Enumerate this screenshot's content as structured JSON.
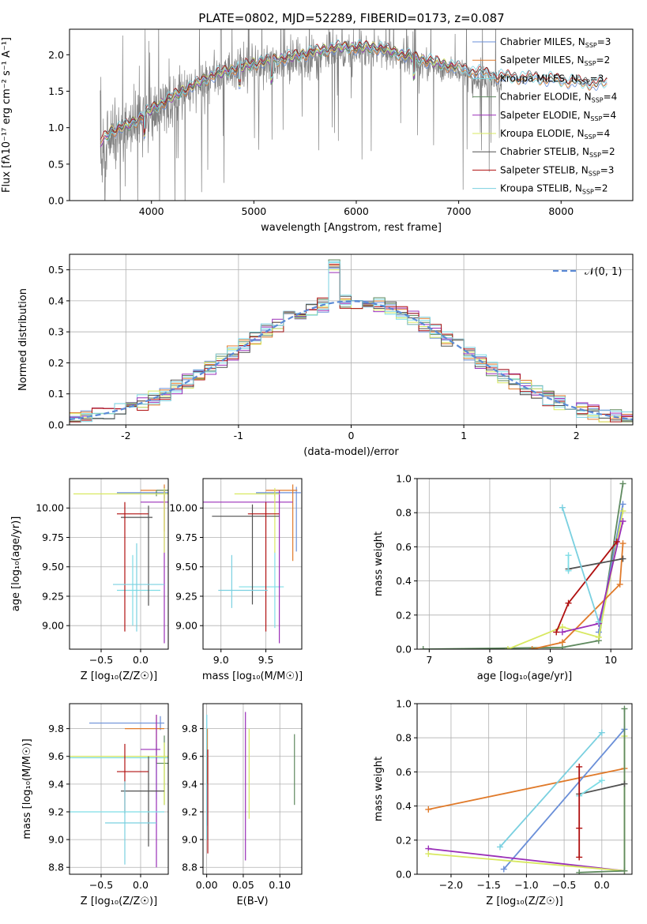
{
  "figure": {
    "title": "PLATE=0802, MJD=52289, FIBERID=0173, z=0.087"
  },
  "series_colors": {
    "Chabrier MILES": "#6a8fd8",
    "Salpeter MILES": "#e07a2a",
    "Kroupa MILES": "#7fdde6",
    "Chabrier ELODIE": "#5f8a5f",
    "Salpeter ELODIE": "#9a2fb8",
    "Kroupa ELODIE": "#d8e860",
    "Chabrier STELIB": "#505050",
    "Salpeter STELIB": "#b01010",
    "Kroupa STELIB": "#7ad0e0"
  },
  "chart_data": [
    {
      "id": "spectrum",
      "type": "line",
      "xlabel": "wavelength [Angstrom, rest frame]",
      "ylabel": "Flux [fλ10⁻¹⁷ erg cm⁻² s⁻¹ A⁻¹]",
      "xlim": [
        3200,
        8700
      ],
      "ylim": [
        0.0,
        2.35
      ],
      "xticks": [
        4000,
        5000,
        6000,
        7000,
        8000
      ],
      "yticks": [
        0.0,
        0.5,
        1.0,
        1.5,
        2.0
      ],
      "grid": false,
      "legend_position": "top-right",
      "data_series": {
        "name": "",
        "color": "#808080",
        "x_range": [
          3500,
          7420
        ],
        "continuum": [
          [
            3500,
            0.55
          ],
          [
            3600,
            0.95
          ],
          [
            3800,
            1.05
          ],
          [
            4000,
            1.2
          ],
          [
            4300,
            1.45
          ],
          [
            4600,
            1.7
          ],
          [
            5000,
            1.85
          ],
          [
            5400,
            1.95
          ],
          [
            5800,
            2.05
          ],
          [
            6200,
            2.05
          ],
          [
            6600,
            1.9
          ],
          [
            7000,
            1.75
          ],
          [
            7420,
            1.6
          ]
        ]
      },
      "legend": [
        {
          "label": "Chabrier MILES, N",
          "sub": "SSP",
          "suffix": "=3"
        },
        {
          "label": "Salpeter MILES, N",
          "sub": "SSP",
          "suffix": "=2"
        },
        {
          "label": "Kroupa MILES, N",
          "sub": "SSP",
          "suffix": "=3"
        },
        {
          "label": "Chabrier ELODIE, N",
          "sub": "SSP",
          "suffix": "=4"
        },
        {
          "label": "Salpeter ELODIE, N",
          "sub": "SSP",
          "suffix": "=4"
        },
        {
          "label": "Kroupa ELODIE, N",
          "sub": "SSP",
          "suffix": "=4"
        },
        {
          "label": "Chabrier STELIB, N",
          "sub": "SSP",
          "suffix": "=2"
        },
        {
          "label": "Salpeter STELIB, N",
          "sub": "SSP",
          "suffix": "=3"
        },
        {
          "label": "Kroupa STELIB, N",
          "sub": "SSP",
          "suffix": "=2"
        }
      ],
      "model_continuum": [
        [
          3500,
          0.8
        ],
        [
          3600,
          0.95
        ],
        [
          3800,
          1.05
        ],
        [
          4000,
          1.25
        ],
        [
          4300,
          1.5
        ],
        [
          4600,
          1.72
        ],
        [
          5000,
          1.88
        ],
        [
          5400,
          1.98
        ],
        [
          5800,
          2.1
        ],
        [
          6200,
          2.1
        ],
        [
          6600,
          1.95
        ],
        [
          7000,
          1.82
        ],
        [
          7400,
          1.7
        ],
        [
          7800,
          1.68
        ],
        [
          8200,
          1.62
        ],
        [
          8400,
          1.6
        ]
      ]
    },
    {
      "id": "residual-hist",
      "type": "histogram",
      "xlabel": "(data-model)/error",
      "ylabel": "Normed distribution",
      "xlim": [
        -2.5,
        2.5
      ],
      "ylim": [
        0.0,
        0.55
      ],
      "xticks": [
        -2,
        -1,
        0,
        1,
        2
      ],
      "yticks": [
        0.0,
        0.1,
        0.2,
        0.3,
        0.4,
        0.5
      ],
      "grid": true,
      "bin_width": 0.1,
      "gaussian": {
        "label": "𝒩(0, 1)",
        "mean": 0,
        "sigma": 1,
        "color": "#5b8ad6"
      },
      "legend_position": "top-right"
    },
    {
      "id": "age-vs-Z",
      "type": "errorbar",
      "xlabel": "Z [log₁₀(Z/Z☉)]",
      "ylabel": "age  [log₁₀(age/yr)]",
      "xlim": [
        -0.9,
        0.35
      ],
      "ylim": [
        8.8,
        10.25
      ],
      "xticks": [
        -0.5,
        0.0
      ],
      "xtick_labels": [
        "−0.5",
        "0.0"
      ],
      "yticks": [
        9.0,
        9.25,
        9.5,
        9.75,
        10.0
      ],
      "ytick_labels": [
        "9.00",
        "9.25",
        "9.50",
        "9.75",
        "10.00"
      ],
      "grid": true,
      "points": [
        {
          "series": "Chabrier MILES",
          "x": 0.3,
          "xerr": [
            0.6,
            0.05
          ],
          "y": 10.13,
          "yerr": [
            0.05,
            0.05
          ]
        },
        {
          "series": "Salpeter MILES",
          "x": 0.3,
          "xerr": [
            0.3,
            0.05
          ],
          "y": 10.15,
          "yerr": [
            0.35,
            0.05
          ]
        },
        {
          "series": "Kroupa MILES",
          "x": -0.1,
          "xerr": [
            0.2,
            0.35
          ],
          "y": 9.3,
          "yerr": [
            0.3,
            0.3
          ]
        },
        {
          "series": "Chabrier ELODIE",
          "x": 0.2,
          "xerr": [
            0.0,
            0.15
          ],
          "y": 10.15,
          "yerr": [
            0.05,
            0.0
          ]
        },
        {
          "series": "Salpeter ELODIE",
          "x": 0.3,
          "xerr": [
            0.3,
            0.05
          ],
          "y": 10.05,
          "yerr": [
            1.2,
            0.1
          ]
        },
        {
          "series": "Kroupa ELODIE",
          "x": 0.3,
          "xerr": [
            1.15,
            0.05
          ],
          "y": 10.12,
          "yerr": [
            0.5,
            0.05
          ]
        },
        {
          "series": "Chabrier STELIB",
          "x": 0.1,
          "xerr": [
            0.35,
            0.05
          ],
          "y": 9.92,
          "yerr": [
            0.75,
            0.1
          ]
        },
        {
          "series": "Salpeter STELIB",
          "x": -0.2,
          "xerr": [
            0.1,
            0.3
          ],
          "y": 9.95,
          "yerr": [
            1.0,
            0.1
          ]
        },
        {
          "series": "Kroupa STELIB",
          "x": -0.05,
          "xerr": [
            0.3,
            0.35
          ],
          "y": 9.35,
          "yerr": [
            0.4,
            0.35
          ]
        }
      ]
    },
    {
      "id": "age-vs-mass",
      "type": "errorbar",
      "xlabel": "mass [log₁₀(M/M☉)]",
      "ylabel": "",
      "xlim": [
        8.8,
        9.9
      ],
      "ylim": [
        8.8,
        10.25
      ],
      "xticks": [
        9.0,
        9.5
      ],
      "xtick_labels": [
        "9.0",
        "9.5"
      ],
      "yticks": [
        9.0,
        9.25,
        9.5,
        9.75,
        10.0
      ],
      "ytick_labels": [
        "9.00",
        "9.25",
        "9.50",
        "9.75",
        "10.00"
      ],
      "grid": true,
      "points": [
        {
          "series": "Chabrier MILES",
          "x": 9.84,
          "xerr": [
            0.45,
            0.05
          ],
          "y": 10.13,
          "yerr": [
            0.5,
            0.05
          ]
        },
        {
          "series": "Salpeter MILES",
          "x": 9.8,
          "xerr": [
            0.3,
            0.05
          ],
          "y": 10.15,
          "yerr": [
            0.6,
            0.05
          ]
        },
        {
          "series": "Kroupa MILES",
          "x": 9.6,
          "xerr": [
            0.4,
            0.1
          ],
          "y": 9.33,
          "yerr": [
            0.35,
            0.3
          ]
        },
        {
          "series": "Chabrier ELODIE",
          "x": 9.6,
          "xerr": [
            0.0,
            0.0
          ],
          "y": 10.15,
          "yerr": [
            0.05,
            0.0
          ]
        },
        {
          "series": "Salpeter ELODIE",
          "x": 9.65,
          "xerr": [
            0.9,
            0.15
          ],
          "y": 10.05,
          "yerr": [
            1.2,
            0.1
          ]
        },
        {
          "series": "Kroupa ELODIE",
          "x": 9.6,
          "xerr": [
            0.45,
            0.05
          ],
          "y": 10.12,
          "yerr": [
            0.5,
            0.05
          ]
        },
        {
          "series": "Chabrier STELIB",
          "x": 9.35,
          "xerr": [
            0.45,
            0.3
          ],
          "y": 9.93,
          "yerr": [
            0.75,
            0.1
          ]
        },
        {
          "series": "Salpeter STELIB",
          "x": 9.5,
          "xerr": [
            0.2,
            0.15
          ],
          "y": 9.95,
          "yerr": [
            1.0,
            0.1
          ]
        },
        {
          "series": "Kroupa STELIB",
          "x": 9.12,
          "xerr": [
            0.15,
            0.4
          ],
          "y": 9.3,
          "yerr": [
            0.15,
            0.3
          ]
        }
      ]
    },
    {
      "id": "weight-vs-age",
      "type": "line",
      "xlabel": "age  [log₁₀(age/yr)]",
      "ylabel": "mass weight",
      "xlim": [
        6.8,
        10.35
      ],
      "ylim": [
        0.0,
        1.0
      ],
      "xticks": [
        7,
        8,
        9,
        10
      ],
      "yticks": [
        0.0,
        0.2,
        0.4,
        0.6,
        0.8,
        1.0
      ],
      "ytick_labels": [
        "0.0",
        "0.2",
        "0.4",
        "0.6",
        "0.8",
        "1.0"
      ],
      "grid": true,
      "series": [
        {
          "name": "Chabrier ELODIE",
          "x": [
            6.9,
            9.2,
            9.8,
            10.2
          ],
          "y": [
            0.0,
            0.01,
            0.05,
            0.97
          ]
        },
        {
          "name": "Chabrier MILES",
          "x": [
            9.8,
            10.2
          ],
          "y": [
            0.1,
            0.85
          ]
        },
        {
          "name": "Kroupa ELODIE",
          "x": [
            8.3,
            9.2,
            9.8,
            10.2
          ],
          "y": [
            0.0,
            0.13,
            0.07,
            0.81
          ]
        },
        {
          "name": "Salpeter MILES",
          "x": [
            8.7,
            9.2,
            10.15,
            10.2
          ],
          "y": [
            0.0,
            0.04,
            0.38,
            0.62
          ]
        },
        {
          "name": "Salpeter ELODIE",
          "x": [
            9.2,
            9.8,
            10.2
          ],
          "y": [
            0.1,
            0.15,
            0.75
          ]
        },
        {
          "name": "Salpeter STELIB",
          "x": [
            9.1,
            9.3,
            10.1
          ],
          "y": [
            0.1,
            0.27,
            0.63
          ]
        },
        {
          "name": "Chabrier STELIB",
          "x": [
            9.3,
            10.2
          ],
          "y": [
            0.47,
            0.53
          ]
        },
        {
          "name": "Kroupa MILES",
          "x": [
            9.3,
            9.3
          ],
          "y": [
            0.46,
            0.55
          ]
        },
        {
          "name": "Kroupa STELIB",
          "x": [
            9.2,
            9.8
          ],
          "y": [
            0.83,
            0.16
          ]
        }
      ]
    },
    {
      "id": "mass-vs-Z",
      "type": "errorbar",
      "xlabel": "Z [log₁₀(Z/Z☉)]",
      "ylabel": "mass [log₁₀(M/M☉)]",
      "xlim": [
        -0.9,
        0.35
      ],
      "ylim": [
        8.75,
        9.98
      ],
      "xticks": [
        -0.5,
        0.0
      ],
      "xtick_labels": [
        "−0.5",
        "0.0"
      ],
      "yticks": [
        8.8,
        9.0,
        9.2,
        9.4,
        9.6,
        9.8
      ],
      "ytick_labels": [
        "8.8",
        "9.0",
        "9.2",
        "9.4",
        "9.6",
        "9.8"
      ],
      "grid": true,
      "points": [
        {
          "series": "Chabrier MILES",
          "x": 0.25,
          "xerr": [
            0.9,
            0.05
          ],
          "y": 9.84,
          "yerr": [
            0.05,
            0.05
          ]
        },
        {
          "series": "Salpeter MILES",
          "x": 0.2,
          "xerr": [
            0.4,
            0.1
          ],
          "y": 9.8,
          "yerr": [
            0.25,
            0.1
          ]
        },
        {
          "series": "Kroupa MILES",
          "x": 0.2,
          "xerr": [
            1.15,
            0.15
          ],
          "y": 9.59,
          "yerr": [
            0.3,
            0.1
          ]
        },
        {
          "series": "Chabrier ELODIE",
          "x": 0.3,
          "xerr": [
            0.1,
            0.05
          ],
          "y": 9.55,
          "yerr": [
            0.3,
            0.2
          ]
        },
        {
          "series": "Salpeter ELODIE",
          "x": 0.2,
          "xerr": [
            0.2,
            0.05
          ],
          "y": 9.65,
          "yerr": [
            0.85,
            0.25
          ]
        },
        {
          "series": "Kroupa ELODIE",
          "x": 0.3,
          "xerr": [
            1.2,
            0.05
          ],
          "y": 9.6,
          "yerr": [
            0.35,
            0.1
          ]
        },
        {
          "series": "Chabrier STELIB",
          "x": 0.1,
          "xerr": [
            0.35,
            0.2
          ],
          "y": 9.35,
          "yerr": [
            0.4,
            0.25
          ]
        },
        {
          "series": "Salpeter STELIB",
          "x": -0.2,
          "xerr": [
            0.1,
            0.3
          ],
          "y": 9.49,
          "yerr": [
            0.3,
            0.2
          ]
        },
        {
          "series": "Kroupa STELIB",
          "x": -0.2,
          "xerr": [
            0.25,
            0.4
          ],
          "y": 9.12,
          "yerr": [
            0.3,
            0.3
          ]
        },
        {
          "series": "Kroupa MILES",
          "x": 0.0,
          "xerr": [
            0.9,
            0.3
          ],
          "y": 9.2,
          "yerr": [
            0.0,
            0.0
          ]
        }
      ]
    },
    {
      "id": "mass-vs-EBV",
      "type": "errorbar",
      "xlabel": "E(B-V)",
      "ylabel": "",
      "xlim": [
        -0.005,
        0.13
      ],
      "ylim": [
        8.75,
        9.98
      ],
      "xticks": [
        0.0,
        0.05,
        0.1
      ],
      "xtick_labels": [
        "0.00",
        "0.05",
        "0.10"
      ],
      "yticks": [
        8.8,
        9.0,
        9.2,
        9.4,
        9.6,
        9.8
      ],
      "ytick_labels": [
        "8.8",
        "9.0",
        "9.2",
        "9.4",
        "9.6",
        "9.8"
      ],
      "grid": true,
      "points": [
        {
          "series": "Chabrier MILES",
          "x": 0.0,
          "xerr": [
            0,
            0
          ],
          "y": 9.6,
          "yerr": [
            0.5,
            0.3
          ]
        },
        {
          "series": "Salpeter MILES",
          "x": 0.001,
          "xerr": [
            0,
            0
          ],
          "y": 9.6,
          "yerr": [
            0.2,
            0.2
          ]
        },
        {
          "series": "Kroupa MILES",
          "x": 0.0,
          "xerr": [
            0,
            0
          ],
          "y": 9.6,
          "yerr": [
            0.6,
            0.3
          ]
        },
        {
          "series": "Salpeter ELODIE",
          "x": 0.053,
          "xerr": [
            0,
            0
          ],
          "y": 9.5,
          "yerr": [
            0.65,
            0.42
          ]
        },
        {
          "series": "Kroupa ELODIE",
          "x": 0.058,
          "xerr": [
            0,
            0
          ],
          "y": 9.5,
          "yerr": [
            0.35,
            0.3
          ]
        },
        {
          "series": "Chabrier ELODIE",
          "x": 0.12,
          "xerr": [
            0,
            0
          ],
          "y": 9.5,
          "yerr": [
            0.25,
            0.26
          ]
        },
        {
          "series": "Salpeter STELIB",
          "x": 0.0015,
          "xerr": [
            0,
            0
          ],
          "y": 9.3,
          "yerr": [
            0.4,
            0.35
          ]
        }
      ]
    },
    {
      "id": "weight-vs-Z",
      "type": "line",
      "xlabel": "Z [log₁₀(Z/Z☉)]",
      "ylabel": "mass weight",
      "xlim": [
        -2.45,
        0.4
      ],
      "ylim": [
        0.0,
        1.0
      ],
      "xticks": [
        -2.0,
        -1.5,
        -1.0,
        -0.5,
        0.0
      ],
      "xtick_labels": [
        "−2.0",
        "−1.5",
        "−1.0",
        "−0.5",
        "0.0"
      ],
      "yticks": [
        0.0,
        0.2,
        0.4,
        0.6,
        0.8,
        1.0
      ],
      "ytick_labels": [
        "0.0",
        "0.2",
        "0.4",
        "0.6",
        "0.8",
        "1.0"
      ],
      "grid": true,
      "series": [
        {
          "name": "Salpeter MILES",
          "x": [
            -2.3,
            0.3
          ],
          "y": [
            0.38,
            0.62
          ]
        },
        {
          "name": "Chabrier MILES",
          "x": [
            -1.3,
            0.3
          ],
          "y": [
            0.03,
            0.85
          ]
        },
        {
          "name": "Kroupa STELIB",
          "x": [
            -1.35,
            0.0
          ],
          "y": [
            0.16,
            0.83
          ]
        },
        {
          "name": "Salpeter ELODIE",
          "x": [
            -2.3,
            0.3
          ],
          "y": [
            0.15,
            0.02
          ]
        },
        {
          "name": "Kroupa ELODIE",
          "x": [
            -2.3,
            0.3,
            0.3
          ],
          "y": [
            0.12,
            0.02,
            0.81
          ]
        },
        {
          "name": "Chabrier ELODIE",
          "x": [
            -0.3,
            0.3,
            0.3
          ],
          "y": [
            0.01,
            0.02,
            0.97
          ]
        },
        {
          "name": "Chabrier STELIB",
          "x": [
            -0.3,
            0.3
          ],
          "y": [
            0.47,
            0.53
          ]
        },
        {
          "name": "Kroupa MILES",
          "x": [
            -0.3,
            0.0
          ],
          "y": [
            0.46,
            0.55
          ]
        },
        {
          "name": "Salpeter STELIB",
          "x": [
            -0.3,
            -0.3,
            -0.3
          ],
          "y": [
            0.1,
            0.27,
            0.63
          ]
        }
      ]
    }
  ]
}
